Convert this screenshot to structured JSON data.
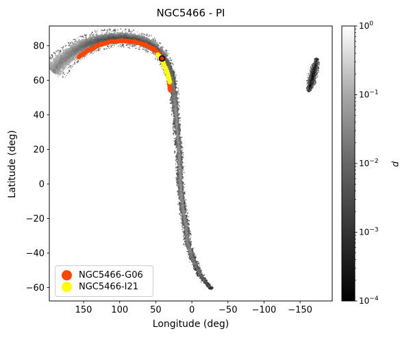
{
  "chart_data": {
    "type": "scatter",
    "title": "NGC5466 - PI",
    "xlabel": "Longitude (deg)",
    "ylabel": "Latitude (deg)",
    "background_color": "#ffffff",
    "x_axis": {
      "ticks": [
        150,
        100,
        50,
        0,
        -50,
        -100,
        -150
      ],
      "lim": [
        197.5,
        -194.5
      ],
      "inverted": true
    },
    "y_axis": {
      "ticks": [
        80,
        60,
        40,
        20,
        0,
        -20,
        -40,
        -60
      ],
      "lim": [
        -67.7,
        91.4
      ]
    },
    "colorbar": {
      "label": "d",
      "scale": "log",
      "vmin": 0.0001,
      "vmax": 1,
      "tick_exponents": [
        0,
        -1,
        -2,
        -3,
        -4
      ],
      "gradient_stops": [
        "#ffffff",
        "#a8a8a8",
        "#666666",
        "#333333",
        "#000000"
      ],
      "cmap": "greys-white-high"
    },
    "legend": {
      "items": [
        {
          "label": "NGC5466-G06",
          "color": "#FF4500"
        },
        {
          "label": "NGC5466-I21",
          "color": "#FFFF00"
        }
      ]
    },
    "density_stream": {
      "name": "simulated-stream-density",
      "comment_shape": "spine points: [longitude_deg, latitude_deg, halfwidth_px, core_gray, edge_gray]",
      "main_spine": [
        [
          192.7,
          65.2,
          13.0,
          135,
          205
        ],
        [
          178.5,
          71.6,
          12.0,
          130,
          200
        ],
        [
          165.2,
          76.3,
          11.0,
          120,
          195
        ],
        [
          150.0,
          79.9,
          10.5,
          105,
          190
        ],
        [
          132.9,
          82.7,
          10.0,
          85,
          180
        ],
        [
          113.9,
          84.2,
          9.5,
          78,
          180
        ],
        [
          95.0,
          84.6,
          9.0,
          75,
          180
        ],
        [
          76.0,
          83.4,
          9.0,
          75,
          178
        ],
        [
          59.9,
          81.1,
          8.5,
          78,
          175
        ],
        [
          47.6,
          77.5,
          7.5,
          80,
          165
        ],
        [
          38.1,
          72.4,
          6.5,
          90,
          140
        ],
        [
          32.4,
          66.8,
          6.0,
          115,
          75
        ],
        [
          27.6,
          60.1,
          5.5,
          120,
          70
        ],
        [
          24.8,
          53.0,
          5.0,
          130,
          72
        ],
        [
          22.9,
          45.0,
          4.5,
          145,
          75
        ],
        [
          21.0,
          35.1,
          4.2,
          145,
          75
        ],
        [
          19.1,
          25.2,
          4.2,
          148,
          78
        ],
        [
          17.2,
          15.3,
          4.2,
          148,
          78
        ],
        [
          16.2,
          5.4,
          4.2,
          148,
          78
        ],
        [
          15.3,
          -4.5,
          4.2,
          148,
          78
        ],
        [
          12.4,
          -14.4,
          4.2,
          145,
          75
        ],
        [
          8.2,
          -24.3,
          4.2,
          142,
          72
        ],
        [
          5.8,
          -34.2,
          4.0,
          138,
          70
        ],
        [
          -0.9,
          -43.3,
          4.0,
          130,
          65
        ],
        [
          -10.3,
          -51.6,
          3.6,
          115,
          58
        ],
        [
          -17.9,
          -56.3,
          3.2,
          95,
          50
        ],
        [
          -23.6,
          -59.1,
          2.6,
          72,
          45
        ],
        [
          -27.4,
          -60.7,
          2.0,
          55,
          40
        ]
      ],
      "clump_spine": [
        [
          -173.5,
          72.4,
          2.5,
          30,
          150
        ],
        [
          -170.7,
          68.0,
          4.2,
          22,
          130
        ],
        [
          -167.8,
          62.9,
          5.0,
          20,
          120
        ],
        [
          -165.0,
          58.1,
          4.4,
          22,
          130
        ],
        [
          -162.1,
          53.7,
          2.6,
          30,
          150
        ]
      ]
    },
    "overlay_tracks": [
      {
        "name": "NGC5466-G06",
        "color": "#FF4500",
        "point_radius": 3.2,
        "segments": [
          [
            [
              156.6,
              73.5
            ],
            [
              144.3,
              77.1
            ],
            [
              130.1,
              80.1
            ],
            [
              113.9,
              82.1
            ],
            [
              96.9,
              82.9
            ],
            [
              79.8,
              82.3
            ],
            [
              64.6,
              80.5
            ],
            [
              52.3,
              77.9
            ],
            [
              44.8,
              75.1
            ]
          ],
          [
            [
              31.4,
              58.1
            ],
            [
              30.0,
              54.1
            ]
          ]
        ]
      },
      {
        "name": "NGC5466-I21",
        "color": "#FFFF00",
        "point_radius": 3.2,
        "segments": [
          [
            [
              47.1,
              74.9
            ],
            [
              43.8,
              73.1
            ],
            [
              40.0,
              70.4
            ],
            [
              36.7,
              67.2
            ],
            [
              33.8,
              64.0
            ],
            [
              31.9,
              61.3
            ],
            [
              30.5,
              58.9
            ]
          ]
        ]
      }
    ],
    "cluster_marker": {
      "name": "NGC5466-cluster",
      "lon": 41.3,
      "lat": 72.6,
      "fill": "#dd340e",
      "edge": "#000000",
      "radius": 3.9
    }
  }
}
